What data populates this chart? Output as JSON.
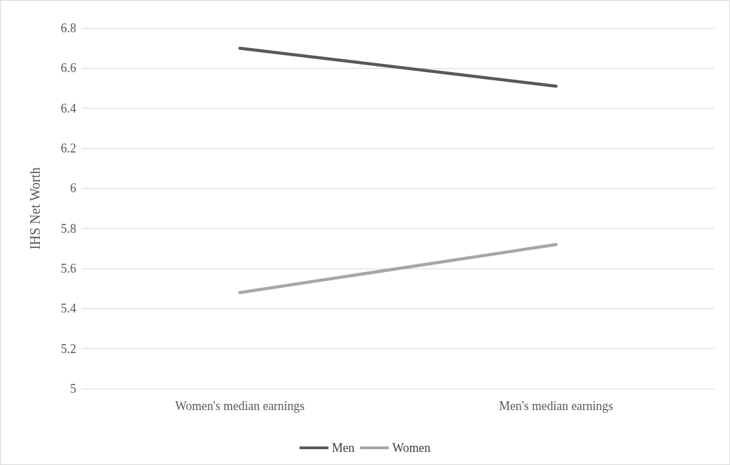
{
  "chart_data": {
    "type": "line",
    "ylabel": "IHS Net Worth",
    "categories": [
      "Women's median earnings",
      "Men's median earnings"
    ],
    "series": [
      {
        "name": "Men",
        "color": "#595959",
        "values": [
          6.7,
          6.51
        ]
      },
      {
        "name": "Women",
        "color": "#a6a6a6",
        "values": [
          5.48,
          5.72
        ]
      }
    ],
    "ylim": [
      5,
      6.8
    ],
    "yticks": [
      5,
      5.2,
      5.4,
      5.6,
      5.8,
      6,
      6.2,
      6.4,
      6.6,
      6.8
    ],
    "grid": "y",
    "legend": "bottom",
    "marker": "none",
    "line_style": "solid"
  }
}
